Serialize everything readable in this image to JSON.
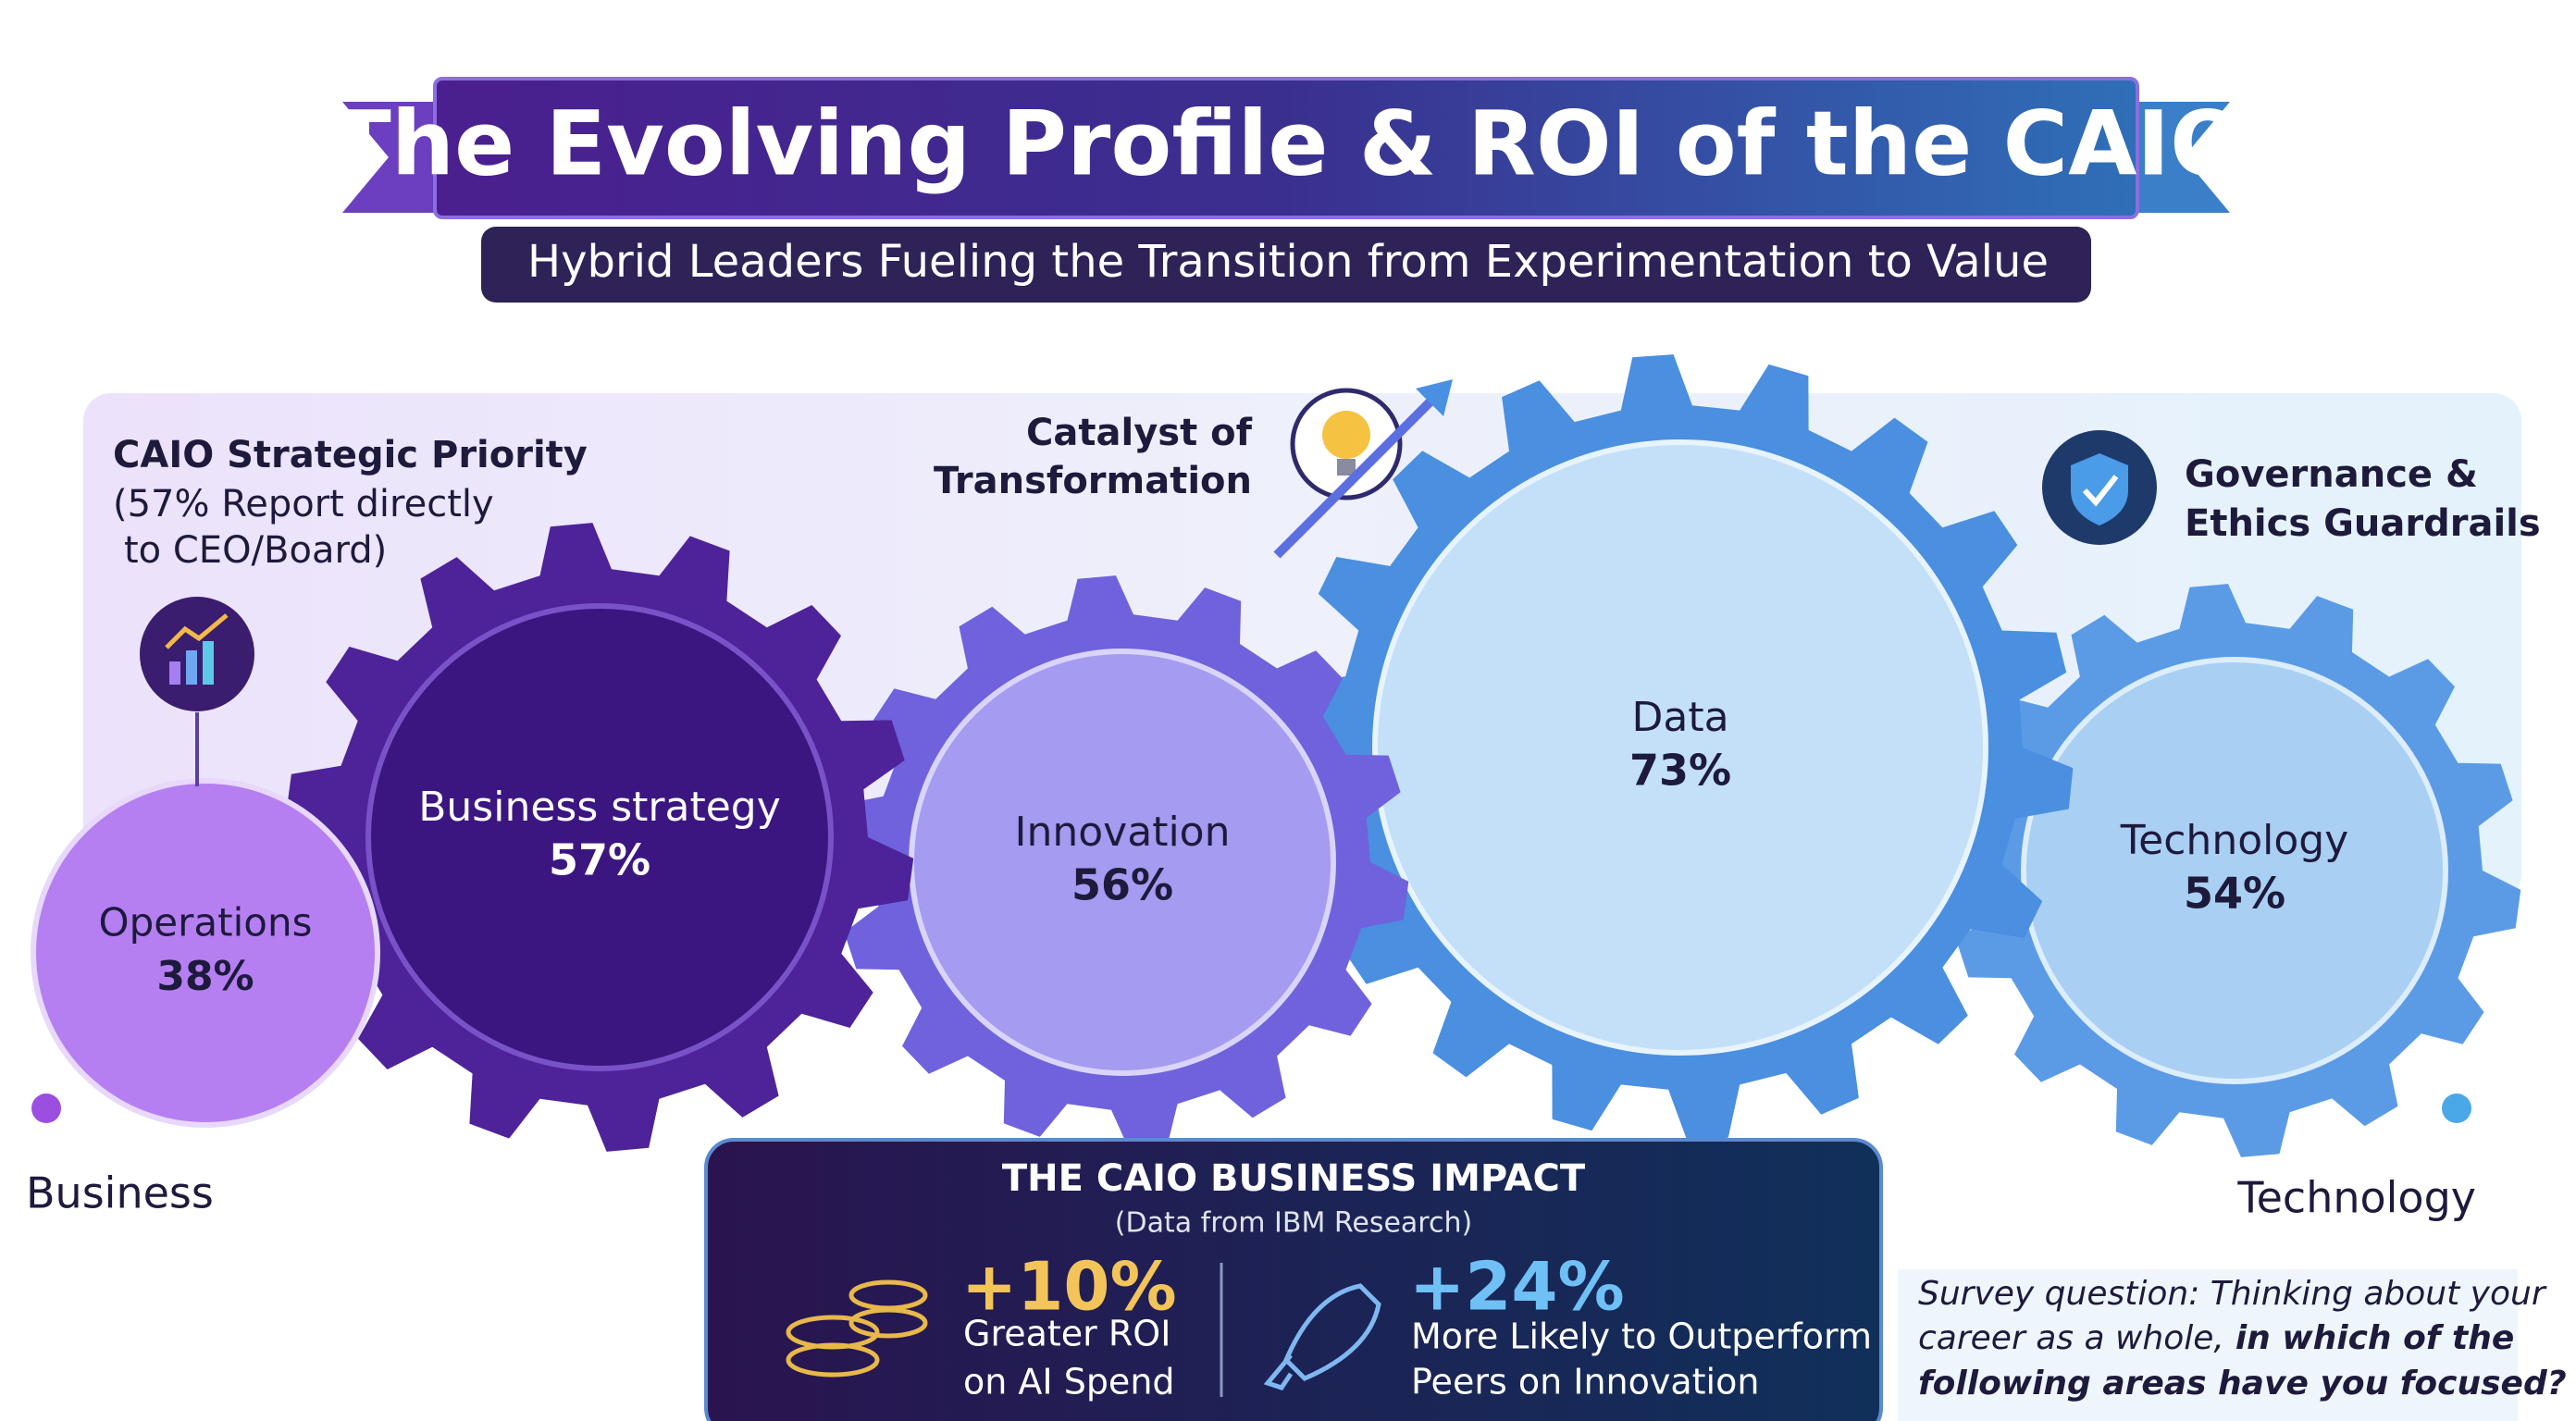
{
  "header": {
    "title": "The Evolving Profile & ROI of the CAIO",
    "subtitle": "Hybrid Leaders Fueling the Transition from Experimentation to Value"
  },
  "callouts": {
    "strategic_priority": {
      "title": "CAIO Strategic Priority",
      "lines": [
        "(57% Report directly",
        "to CEO/Board)"
      ]
    },
    "catalyst": {
      "lines": [
        "Catalyst of",
        "Transformation"
      ]
    },
    "governance": {
      "lines": [
        "Governance &",
        "Ethics Guardrails"
      ]
    }
  },
  "gears": [
    {
      "label": "Operations",
      "value": "38%"
    },
    {
      "label": "Business strategy",
      "value": "57%"
    },
    {
      "label": "Innovation",
      "value": "56%"
    },
    {
      "label": "Data",
      "value": "73%"
    },
    {
      "label": "Technology",
      "value": "54%"
    }
  ],
  "axis": {
    "left": "Business",
    "right": "Technology"
  },
  "impact": {
    "title": "THE CAIO BUSINESS IMPACT",
    "source": "(Data from IBM Research)",
    "stats": [
      {
        "value": "+10%",
        "lines": [
          "Greater ROI",
          "on AI Spend"
        ]
      },
      {
        "value": "+24%",
        "lines": [
          "More Likely to Outperform",
          "Peers on Innovation"
        ]
      }
    ]
  },
  "survey": {
    "lines": [
      "Survey question: Thinking about your",
      "career as a whole,",
      "in which of the",
      "following areas have you focused?"
    ]
  }
}
